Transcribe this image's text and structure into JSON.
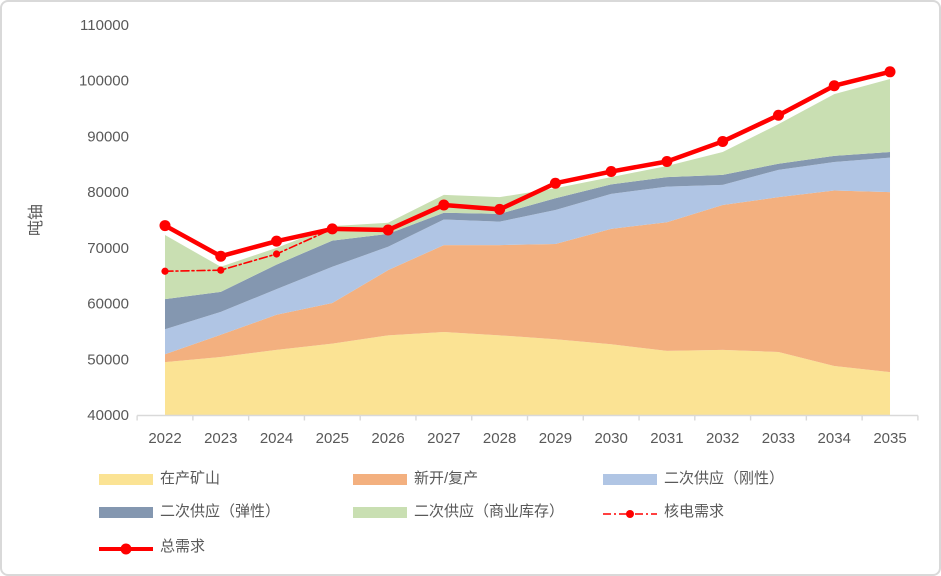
{
  "chart_data": {
    "type": "area",
    "subtype": "stacked-area-with-lines",
    "title": "",
    "xlabel": "",
    "ylabel": "吨铀",
    "categories": [
      "2022",
      "2023",
      "2024",
      "2025",
      "2026",
      "2027",
      "2028",
      "2029",
      "2030",
      "2031",
      "2032",
      "2033",
      "2034",
      "2035"
    ],
    "y_axis": {
      "min": 40000,
      "max": 110000,
      "step": 10000,
      "tick_labels": [
        "40000",
        "50000",
        "60000",
        "70000",
        "80000",
        "90000",
        "100000",
        "110000"
      ]
    },
    "grid": "off",
    "legend_position": "bottom",
    "axis_color": "#d9d9d9",
    "text_color": "#595959",
    "stacked_area_series": [
      {
        "name": "在产矿山",
        "color": "#FBE394",
        "values": [
          49500,
          50400,
          51700,
          52800,
          54300,
          54900,
          54300,
          53600,
          52700,
          51500,
          51700,
          51300,
          48800,
          47700
        ]
      },
      {
        "name": "新开/复产",
        "color": "#F3B07F",
        "values": [
          1400,
          4000,
          6300,
          7300,
          11700,
          15600,
          16200,
          17100,
          20700,
          23100,
          26000,
          27800,
          31500,
          32300
        ]
      },
      {
        "name": "二次供应（刚性）",
        "color": "#B0C5E4",
        "values": [
          4500,
          4100,
          4600,
          6500,
          4200,
          4600,
          4200,
          6100,
          6300,
          6400,
          3600,
          4900,
          5100,
          6200
        ]
      },
      {
        "name": "二次供应（弹性）",
        "color": "#8497B0",
        "values": [
          5400,
          3600,
          4400,
          4700,
          2300,
          1200,
          1400,
          2100,
          1700,
          1700,
          1800,
          1100,
          1100,
          1000
        ]
      },
      {
        "name": "二次供应（商业库存）",
        "color": "#C9DFB2",
        "values": [
          11500,
          4500,
          3000,
          2600,
          2000,
          3200,
          3000,
          1800,
          1300,
          2000,
          4100,
          7100,
          11100,
          13100
        ]
      }
    ],
    "line_series": [
      {
        "name": "核电需求",
        "color": "#FF0000",
        "style": "dash-dot",
        "width": 1.6,
        "marker_radius": 3.6,
        "values": [
          65800,
          66000,
          68900,
          73400,
          73200,
          77700,
          76900,
          81600,
          83700,
          85500,
          89100,
          93800,
          99100,
          101600
        ]
      },
      {
        "name": "总需求",
        "color": "#FF0000",
        "style": "solid",
        "width": 4.5,
        "marker_radius": 5.5,
        "values": [
          74000,
          68500,
          71200,
          73400,
          73200,
          77700,
          76900,
          81600,
          83700,
          85500,
          89100,
          93800,
          99100,
          101600
        ]
      }
    ]
  }
}
